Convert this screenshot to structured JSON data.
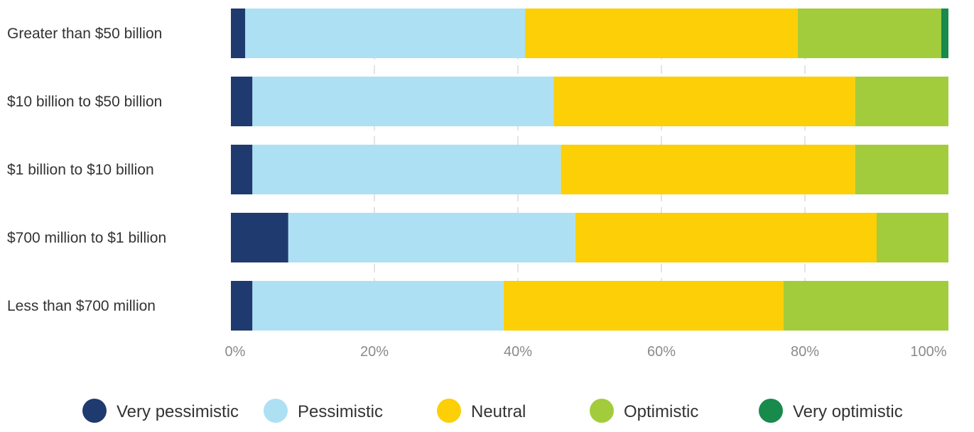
{
  "chart_data": {
    "type": "bar",
    "orientation": "horizontal",
    "stacked": true,
    "categories": [
      "Greater than $50 billion",
      "$10 billion to $50 billion",
      "$1 billion to $10 billion",
      "$700 million to $1 billion",
      "Less than $700 million"
    ],
    "series": [
      {
        "name": "Very pessimistic",
        "color": "#1f3a6e",
        "values": [
          2,
          3,
          3,
          8,
          3
        ]
      },
      {
        "name": "Pessimistic",
        "color": "#aee0f4",
        "values": [
          39,
          42,
          43,
          40,
          35
        ]
      },
      {
        "name": "Neutral",
        "color": "#fccf06",
        "values": [
          38,
          42,
          41,
          42,
          39
        ]
      },
      {
        "name": "Optimistic",
        "color": "#a3cc3c",
        "values": [
          20,
          13,
          13,
          10,
          23
        ]
      },
      {
        "name": "Very optimistic",
        "color": "#178a4c",
        "values": [
          1,
          0,
          0,
          0,
          0
        ]
      }
    ],
    "xlim": [
      0,
      100
    ],
    "x_ticks": [
      "0%",
      "20%",
      "40%",
      "60%",
      "80%",
      "100%"
    ],
    "grid": "vertical-dashed",
    "legend_position": "bottom",
    "title": "",
    "xlabel": "",
    "ylabel": ""
  }
}
